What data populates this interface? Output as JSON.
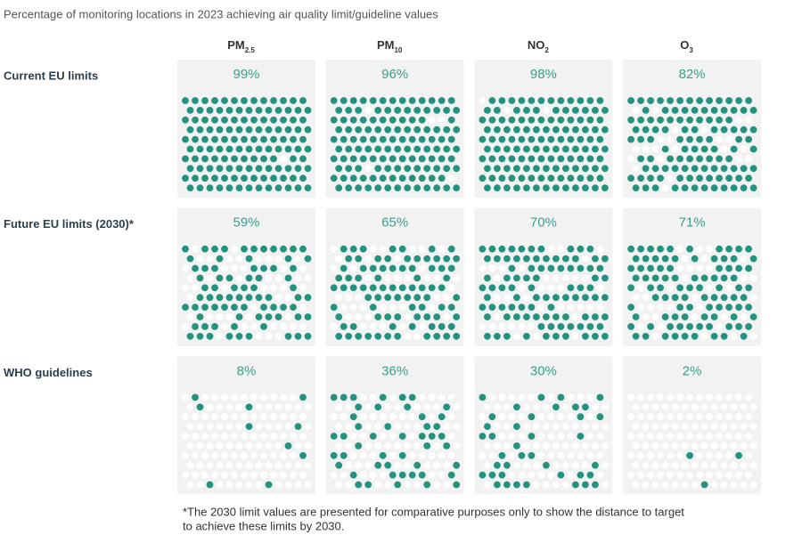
{
  "chart_data": {
    "type": "waffle",
    "title": "Percentage of monitoring locations in 2023 achieving air quality limit/guideline values",
    "columns": [
      {
        "label": "PM",
        "sub": "2.5"
      },
      {
        "label": "PM",
        "sub": "10"
      },
      {
        "label": "NO",
        "sub": "2"
      },
      {
        "label": "O",
        "sub": "3"
      }
    ],
    "rows": [
      {
        "name": "Current EU limits",
        "values": [
          99,
          96,
          98,
          82
        ],
        "value_labels": [
          "99%",
          "96%",
          "98%",
          "82%"
        ]
      },
      {
        "name": "Future EU limits (2030)*",
        "values": [
          59,
          65,
          70,
          71
        ],
        "value_labels": [
          "59%",
          "65%",
          "70%",
          "71%"
        ]
      },
      {
        "name": "WHO guidelines",
        "values": [
          8,
          36,
          30,
          2
        ],
        "value_labels": [
          "8%",
          "36%",
          "30%",
          "2%"
        ]
      }
    ],
    "color": "#23937f",
    "footnote": [
      "*The 2030 limit values are presented for comparative purposes only to show the distance to target",
      "to achieve these limits by 2030."
    ]
  }
}
